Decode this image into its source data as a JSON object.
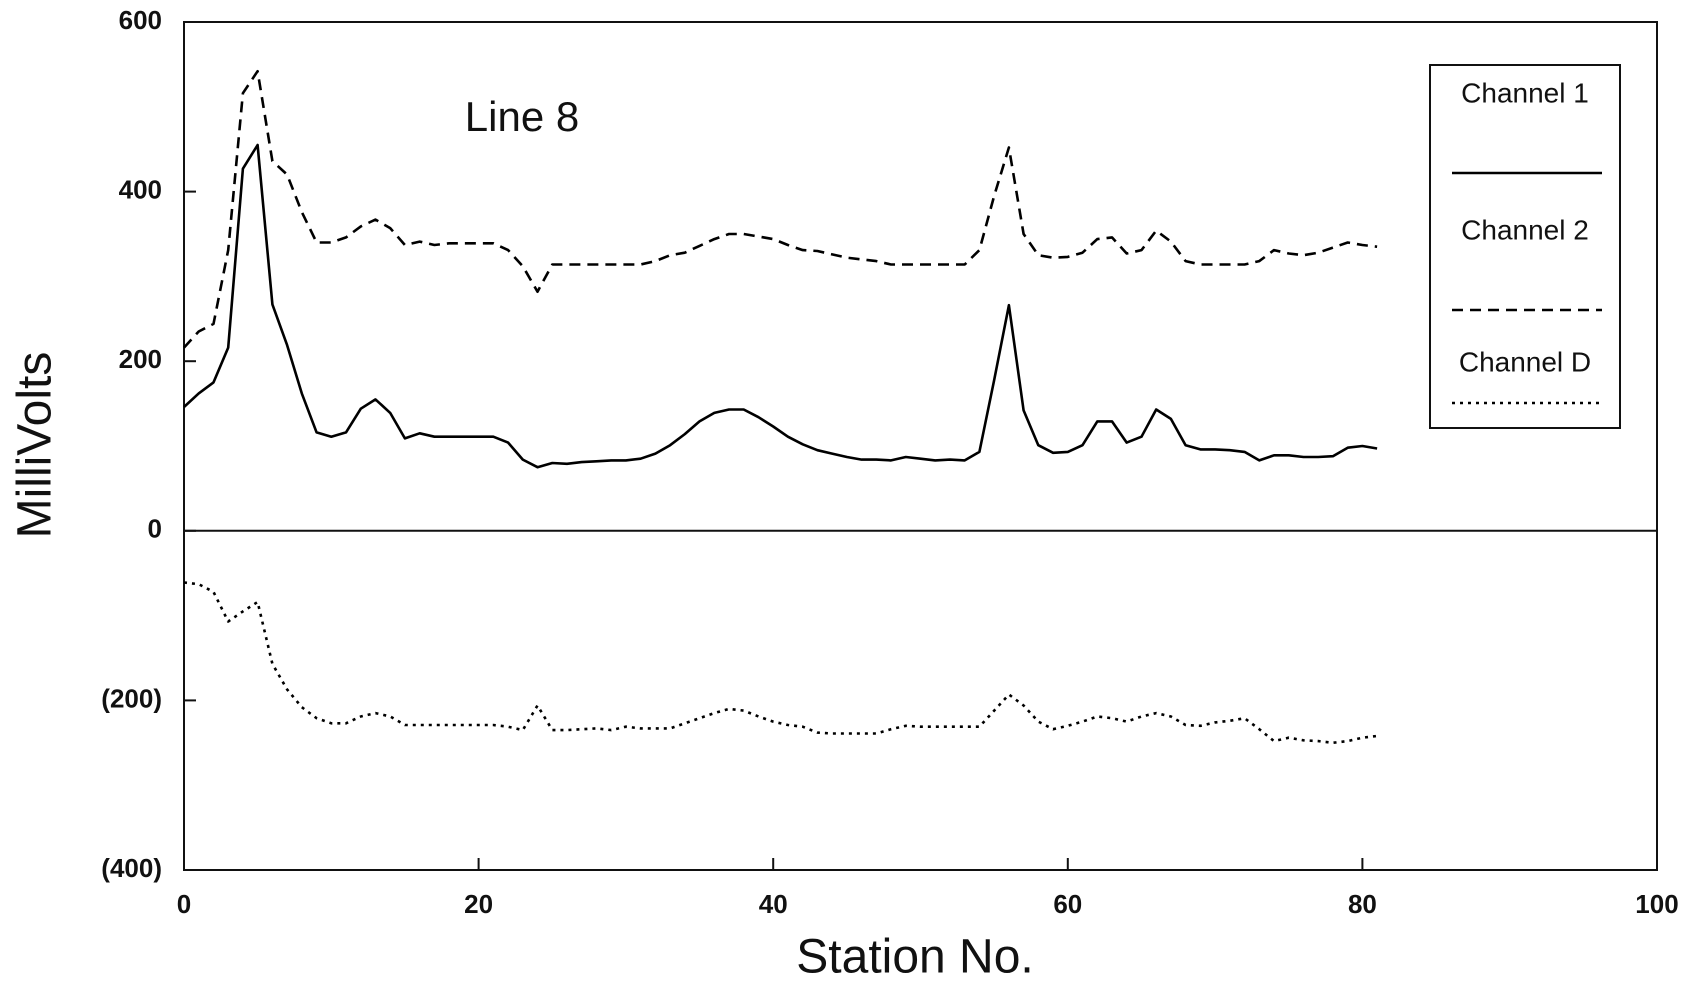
{
  "chart_data": {
    "type": "line",
    "title": "Line 8",
    "x_label": "Station No.",
    "y_label": "MilliVolts",
    "x": [
      0,
      1,
      2,
      3,
      4,
      5,
      6,
      7,
      8,
      9,
      10,
      11,
      12,
      13,
      14,
      15,
      16,
      17,
      18,
      19,
      20,
      21,
      22,
      23,
      24,
      25,
      26,
      27,
      28,
      29,
      30,
      31,
      32,
      33,
      34,
      35,
      36,
      37,
      38,
      39,
      40,
      41,
      42,
      43,
      44,
      45,
      46,
      47,
      48,
      49,
      50,
      51,
      52,
      53,
      54,
      55,
      56,
      57,
      58,
      59,
      60,
      61,
      62,
      63,
      64,
      65,
      66,
      67,
      68,
      69,
      70,
      71,
      72,
      73,
      74,
      75,
      76,
      77,
      78,
      79,
      80,
      81
    ],
    "series": [
      {
        "name": "Channel 1",
        "color": "#000000",
        "style": "solid",
        "values": [
          146,
          162,
          175,
          216,
          427,
          455,
          267,
          219,
          162,
          116,
          111,
          116,
          144,
          155,
          139,
          109,
          115,
          111,
          111,
          111,
          111,
          111,
          104,
          84,
          75,
          80,
          79,
          81,
          82,
          83,
          83,
          85,
          91,
          101,
          114,
          129,
          139,
          143,
          143,
          134,
          123,
          111,
          102,
          95,
          91,
          87,
          84,
          84,
          83,
          87,
          85,
          83,
          84,
          83,
          93,
          178,
          266,
          142,
          101,
          92,
          93,
          101,
          129,
          129,
          104,
          111,
          143,
          132,
          101,
          96,
          96,
          95,
          93,
          83,
          89,
          89,
          87,
          87,
          88,
          98,
          100,
          97
        ]
      },
      {
        "name": "Channel 2",
        "color": "#000000",
        "style": "dashed",
        "values": [
          216,
          235,
          244,
          331,
          516,
          542,
          436,
          420,
          376,
          340,
          340,
          346,
          359,
          367,
          357,
          337,
          341,
          337,
          339,
          339,
          339,
          339,
          331,
          312,
          282,
          314,
          314,
          314,
          314,
          314,
          314,
          314,
          318,
          325,
          328,
          336,
          344,
          350,
          350,
          347,
          344,
          337,
          331,
          330,
          326,
          322,
          320,
          318,
          314,
          314,
          314,
          314,
          314,
          314,
          331,
          395,
          452,
          350,
          325,
          322,
          323,
          328,
          344,
          346,
          327,
          331,
          354,
          341,
          318,
          314,
          314,
          314,
          314,
          318,
          331,
          327,
          325,
          328,
          334,
          340,
          337,
          335
        ]
      },
      {
        "name": "Channel D",
        "color": "#000000",
        "style": "dotted",
        "values": [
          -61,
          -63,
          -72,
          -107,
          -95,
          -84,
          -157,
          -187,
          -208,
          -221,
          -227,
          -227,
          -219,
          -215,
          -219,
          -229,
          -229,
          -229,
          -229,
          -229,
          -229,
          -229,
          -231,
          -235,
          -206,
          -235,
          -235,
          -234,
          -233,
          -235,
          -231,
          -233,
          -233,
          -233,
          -227,
          -221,
          -215,
          -210,
          -212,
          -219,
          -225,
          -229,
          -231,
          -238,
          -239,
          -239,
          -239,
          -239,
          -234,
          -230,
          -231,
          -231,
          -231,
          -231,
          -231,
          -212,
          -193,
          -206,
          -225,
          -234,
          -230,
          -225,
          -219,
          -221,
          -225,
          -219,
          -215,
          -219,
          -229,
          -230,
          -226,
          -224,
          -221,
          -234,
          -248,
          -244,
          -247,
          -248,
          -250,
          -248,
          -244,
          -242
        ]
      }
    ],
    "xlim": [
      0,
      100
    ],
    "xticks": [
      0,
      20,
      40,
      60,
      80,
      100
    ],
    "ylim": [
      -400,
      600
    ],
    "yticks": [
      600,
      400,
      200,
      0,
      {
        "value": -200,
        "label": "(200)"
      },
      {
        "value": -400,
        "label": "(400)"
      }
    ],
    "legend": "upper-right"
  }
}
